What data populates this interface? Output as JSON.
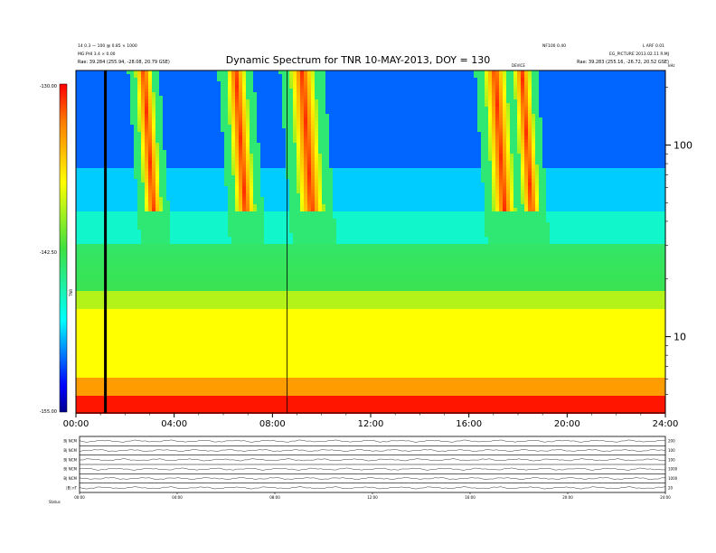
{
  "header": {
    "title": "Dynamic Spectrum for TNR 10-MAY-2013, DOY = 130",
    "left_line1": "14 0.3 — 100 @ 0.85 × 1000 ",
    "left_line2": "MG:PHI 3.4 × 0.00",
    "left_line3": "Rae:   39.284 (255.94, -28.08, 20.79 GSE)",
    "right_left_line1": "NF100 0.40",
    "right_right_line1": "L ARF 0.01",
    "right_right_line2": "EG_PICTURE 2013.02.11 R.MJ",
    "right_right_line3": "Rae:   39.283 (255.16, -26.72, 20.52 GSE)",
    "marker_label": "DEVICE",
    "corner_label": "kHz"
  },
  "colorbar": {
    "max_label": "-130.00",
    "mid_label": "-142.50",
    "min_label": "-155.00",
    "side_label": "TNR",
    "vmin": -155.0,
    "vmax": -130.0
  },
  "chart_data": {
    "type": "heatmap",
    "title": "Dynamic Spectrum for TNR 10-MAY-2013, DOY = 130",
    "x_ticks": [
      "00:00",
      "04:00",
      "08:00",
      "12:00",
      "16:00",
      "20:00",
      "24:00"
    ],
    "x_range_hours": [
      0,
      24
    ],
    "y_scale": "log",
    "y_unit": "kHz",
    "y_ticks": [
      "10",
      "100"
    ],
    "y_range_khz": [
      4,
      245
    ],
    "z_range": [
      -155.0,
      -130.0
    ],
    "colorbar_ticks": [
      "-130.00",
      "-142.50",
      "-155.00"
    ],
    "bursts": [
      {
        "start_hour": 2.9,
        "end_hour": 3.6
      },
      {
        "start_hour": 6.6,
        "end_hour": 7.4
      },
      {
        "start_hour": 9.2,
        "end_hour": 10.2
      },
      {
        "start_hour": 17.1,
        "end_hour": 18.0
      },
      {
        "start_hour": 18.3,
        "end_hour": 19.0
      }
    ],
    "data_gap_hour": 1.2
  },
  "panel": {
    "rows": [
      {
        "label": "B| NCM",
        "right": "200"
      },
      {
        "label": "B| NCM",
        "right": "100"
      },
      {
        "label": "B| NCM",
        "right": "100"
      },
      {
        "label": "B| NCM",
        "right": "1000"
      },
      {
        "label": "B| NCM",
        "right": "1000"
      },
      {
        "label": "|B| nT",
        "right": "20"
      }
    ],
    "x_ticks": [
      "00:00",
      "04:00",
      "08:00",
      "12:00",
      "16:00",
      "20:00",
      "24:00"
    ],
    "footer_label": "Status"
  },
  "colors": {
    "low": "#0000a0",
    "blue": "#1e3cff",
    "cyan": "#00ffff",
    "green": "#40d040",
    "yellow": "#ffff00",
    "red": "#ff0000"
  }
}
